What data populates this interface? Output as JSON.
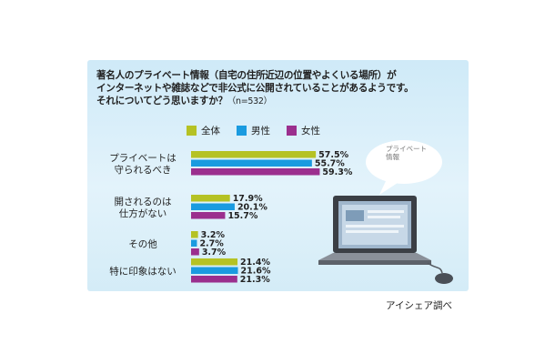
{
  "chart_data": {
    "type": "bar",
    "orientation": "horizontal",
    "title": [
      "著名人のプライベート情報（自宅の住所近辺の位置やよくいる場所）が",
      "インターネットや雑誌などで非公式に公開されていることがあるようです。",
      "それについてどう思いますか？"
    ],
    "sample_size": "（n=532）",
    "categories": [
      [
        "プライベートは",
        "守られるべき"
      ],
      [
        "開されるのは",
        "仕方がない"
      ],
      [
        "その他"
      ],
      [
        "特に印象はない"
      ]
    ],
    "series": [
      {
        "name": "全体",
        "color": "#b5c224",
        "values": [
          57.5,
          17.9,
          3.2,
          21.4
        ],
        "labels": [
          "57.5%",
          "17.9%",
          "3.2%",
          "21.4%"
        ]
      },
      {
        "name": "男性",
        "color": "#1a9be0",
        "values": [
          55.7,
          20.1,
          2.7,
          21.6
        ],
        "labels": [
          "55.7%",
          "20.1%",
          "2.7%",
          "21.6%"
        ]
      },
      {
        "name": "女性",
        "color": "#9b2f8e",
        "values": [
          59.3,
          15.7,
          3.7,
          21.3
        ],
        "labels": [
          "59.3%",
          "15.7%",
          "3.7%",
          "21.3%"
        ]
      }
    ],
    "value_unit": "%",
    "legend_position": "top",
    "grid": false
  },
  "illustration": {
    "bubble_text": [
      "プライベート",
      "情報"
    ],
    "icons": [
      "laptop-icon",
      "mouse-icon",
      "speech-bubble-icon"
    ]
  },
  "source": "アイシェア調べ"
}
